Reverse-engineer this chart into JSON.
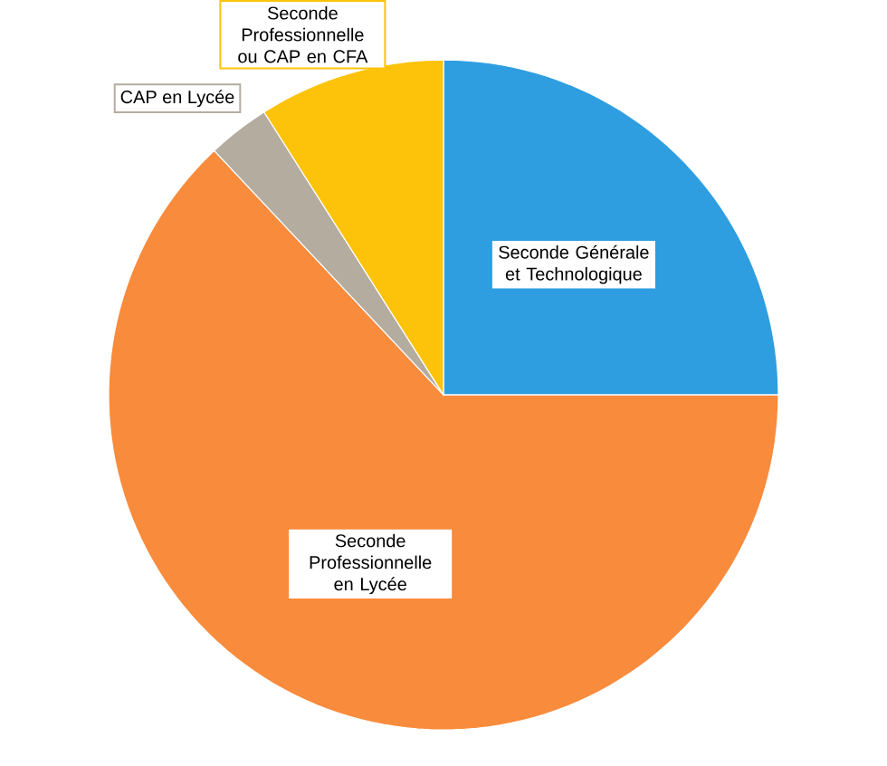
{
  "chart_data": {
    "type": "pie",
    "categories": [
      "Seconde Générale et Technologique",
      "Seconde Professionnelle en Lycée",
      "CAP en Lycée",
      "Seconde Professionnelle ou CAP en CFA"
    ],
    "values": [
      25,
      63,
      3,
      9
    ],
    "colors": [
      "#2e9ee0",
      "#f98b3c",
      "#b5aca0",
      "#fdc30a"
    ]
  }
}
